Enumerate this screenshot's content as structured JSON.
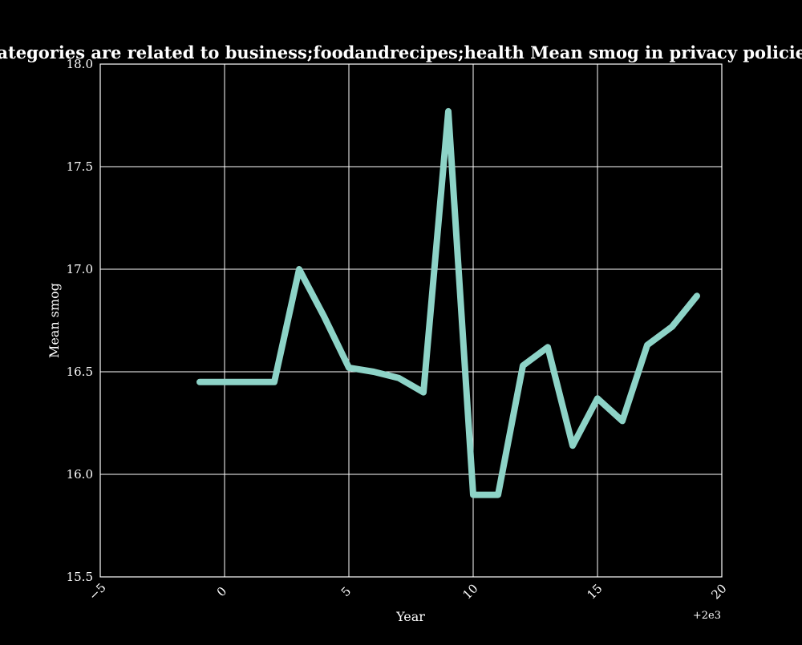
{
  "chart_data": {
    "type": "line",
    "title": "when categories are related to business;foodandrecipes;health Mean smog in privacy policies by Year",
    "xlabel": "Year",
    "ylabel": "Mean smog",
    "x_offset_label": "+2e3",
    "xlim": [
      -5,
      20
    ],
    "ylim": [
      15.5,
      18.0
    ],
    "x_ticks": [
      -5,
      0,
      5,
      10,
      15,
      20
    ],
    "x_tick_labels": [
      "−5",
      "0",
      "5",
      "10",
      "15",
      "20"
    ],
    "y_ticks": [
      15.5,
      16.0,
      16.5,
      17.0,
      17.5,
      18.0
    ],
    "y_tick_labels": [
      "15.5",
      "16.0",
      "16.5",
      "17.0",
      "17.5",
      "18.0"
    ],
    "grid": true,
    "line_color": "#8dd3c7",
    "series": [
      {
        "x": [
          -1,
          0,
          1,
          2,
          3,
          4,
          5,
          6,
          7,
          8,
          9,
          10,
          11,
          12,
          13,
          14,
          15,
          16,
          17,
          18,
          19
        ],
        "values": [
          16.45,
          16.45,
          16.45,
          16.45,
          17.0,
          16.77,
          16.52,
          16.5,
          16.47,
          16.4,
          17.77,
          15.9,
          15.9,
          16.53,
          16.62,
          16.14,
          16.37,
          16.26,
          16.63,
          16.72,
          16.87
        ]
      }
    ]
  }
}
